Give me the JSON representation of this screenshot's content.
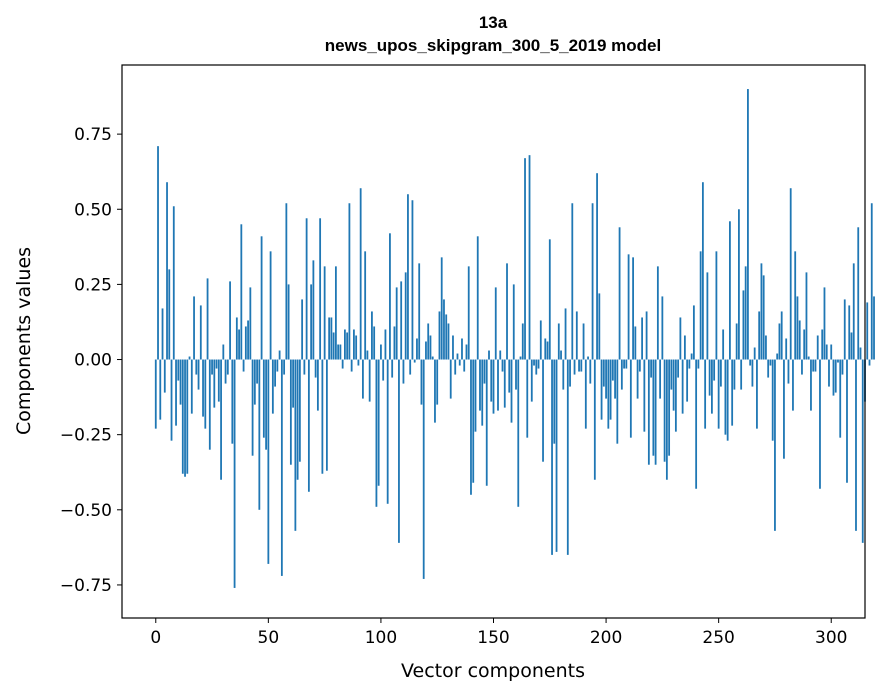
{
  "chart_data": {
    "type": "bar",
    "title_line1": "13a",
    "title_line2": "news_upos_skipgram_300_5_2019 model",
    "xlabel": "Vector components",
    "ylabel": "Components values",
    "xlim": [
      -15,
      315
    ],
    "ylim": [
      -0.86,
      0.98
    ],
    "xticks": [
      0,
      50,
      100,
      150,
      200,
      250,
      300
    ],
    "xtick_labels": [
      "0",
      "50",
      "100",
      "150",
      "200",
      "250",
      "300"
    ],
    "yticks": [
      -0.75,
      -0.5,
      -0.25,
      0.0,
      0.25,
      0.5,
      0.75
    ],
    "ytick_labels": [
      "−0.75",
      "−0.50",
      "−0.25",
      "0.00",
      "0.25",
      "0.50",
      "0.75"
    ],
    "bar_color": "#1f77b4",
    "values": [
      -0.23,
      0.71,
      -0.2,
      0.17,
      -0.11,
      0.59,
      0.3,
      -0.27,
      0.51,
      -0.22,
      -0.07,
      -0.15,
      -0.38,
      -0.39,
      -0.38,
      0.01,
      -0.18,
      0.21,
      -0.05,
      -0.1,
      0.18,
      -0.19,
      -0.23,
      0.27,
      -0.3,
      -0.05,
      -0.16,
      -0.03,
      -0.14,
      -0.4,
      0.05,
      -0.08,
      -0.05,
      0.26,
      -0.28,
      -0.76,
      0.14,
      0.1,
      0.45,
      -0.04,
      0.11,
      0.13,
      0.24,
      -0.32,
      -0.15,
      -0.08,
      -0.5,
      0.41,
      -0.26,
      -0.3,
      -0.68,
      0.36,
      -0.18,
      -0.09,
      -0.04,
      0.03,
      -0.72,
      -0.05,
      0.52,
      0.25,
      -0.35,
      -0.16,
      -0.57,
      -0.4,
      -0.34,
      0.2,
      -0.05,
      0.47,
      -0.44,
      0.25,
      0.33,
      -0.06,
      -0.17,
      0.47,
      -0.38,
      0.31,
      -0.37,
      0.14,
      0.14,
      0.09,
      0.31,
      0.05,
      0.05,
      -0.03,
      0.1,
      0.09,
      0.52,
      -0.04,
      0.1,
      0.08,
      -0.02,
      0.57,
      -0.13,
      0.36,
      0.03,
      -0.14,
      0.16,
      0.11,
      -0.49,
      -0.42,
      0.05,
      -0.07,
      0.1,
      -0.48,
      0.42,
      -0.06,
      0.11,
      0.24,
      -0.61,
      0.26,
      -0.08,
      0.29,
      0.55,
      -0.05,
      0.53,
      -0.01,
      0.07,
      0.32,
      -0.15,
      -0.73,
      0.06,
      0.12,
      0.08,
      0.01,
      -0.21,
      -0.15,
      0.16,
      0.34,
      0.2,
      0.15,
      0.12,
      -0.13,
      0.08,
      -0.05,
      0.02,
      -0.02,
      0.07,
      -0.04,
      0.05,
      0.31,
      -0.45,
      -0.41,
      -0.24,
      0.41,
      -0.17,
      -0.22,
      -0.08,
      -0.42,
      0.03,
      -0.14,
      -0.18,
      0.24,
      -0.17,
      0.03,
      -0.04,
      -0.16,
      0.32,
      -0.11,
      -0.21,
      0.25,
      -0.1,
      -0.49,
      0.01,
      0.12,
      0.67,
      -0.26,
      0.68,
      -0.14,
      -0.02,
      -0.05,
      -0.03,
      0.13,
      -0.34,
      0.07,
      0.06,
      0.4,
      -0.65,
      -0.28,
      -0.64,
      0.12,
      0.03,
      -0.1,
      0.17,
      -0.65,
      -0.09,
      0.52,
      -0.05,
      0.16,
      -0.04,
      -0.04,
      0.12,
      -0.23,
      0.01,
      -0.08,
      0.52,
      -0.4,
      0.62,
      0.22,
      -0.2,
      -0.09,
      -0.13,
      -0.23,
      -0.2,
      -0.07,
      -0.13,
      -0.28,
      0.44,
      -0.1,
      -0.03,
      -0.03,
      0.35,
      -0.26,
      0.34,
      0.11,
      -0.13,
      -0.04,
      0.14,
      -0.24,
      0.16,
      -0.35,
      -0.06,
      -0.32,
      -0.35,
      0.31,
      -0.13,
      0.21,
      -0.34,
      -0.4,
      -0.32,
      -0.1,
      -0.17,
      -0.24,
      -0.06,
      0.14,
      -0.18,
      0.08,
      -0.14,
      -0.03,
      0.02,
      0.18,
      -0.43,
      -0.03,
      0.36,
      0.59,
      -0.23,
      0.29,
      -0.12,
      -0.18,
      -0.07,
      0.36,
      -0.23,
      -0.09,
      0.1,
      -0.25,
      -0.27,
      0.46,
      -0.22,
      -0.1,
      0.12,
      0.5,
      -0.1,
      0.23,
      0.31,
      0.9,
      -0.02,
      -0.09,
      0.04,
      -0.23,
      0.16,
      0.32,
      0.28,
      0.08,
      -0.06,
      -0.02,
      -0.27,
      -0.57,
      0.02,
      0.12,
      0.16,
      -0.33,
      0.07,
      -0.08,
      0.57,
      -0.17,
      0.36,
      0.21,
      0.13,
      -0.05,
      0.1,
      0.29,
      0.01,
      -0.17,
      -0.04,
      -0.04,
      0.08,
      -0.43,
      0.1,
      0.24,
      0.05,
      -0.09,
      0.05,
      -0.12,
      -0.11,
      -0.01,
      -0.26,
      -0.05,
      0.2,
      -0.41,
      0.18,
      0.09,
      0.32,
      -0.57,
      0.44,
      0.04,
      -0.61,
      -0.14,
      0.19,
      -0.02,
      0.52,
      0.21
    ]
  }
}
